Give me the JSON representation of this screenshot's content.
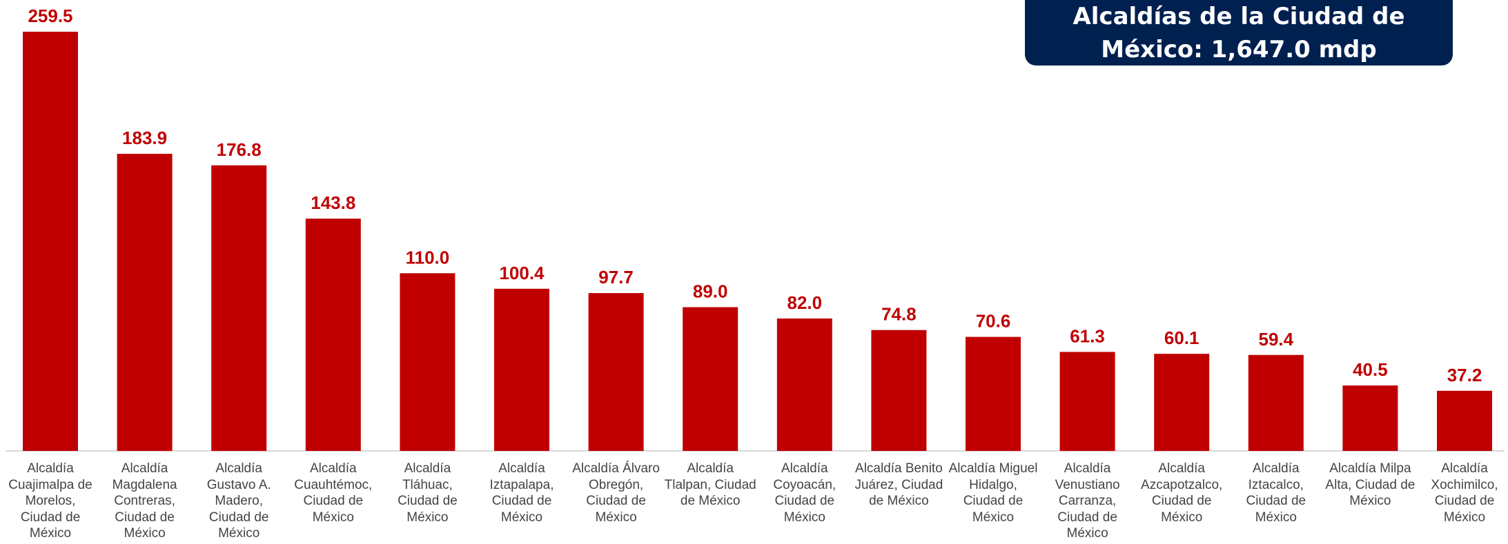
{
  "chart_data": {
    "type": "bar",
    "title": "Alcaldías de la Ciudad de México: 1,647.0 mdp",
    "categories": [
      "Alcaldía Cuajimalpa de Morelos, Ciudad de México",
      "Alcaldía Magdalena Contreras, Ciudad de México",
      "Alcaldía Gustavo A. Madero, Ciudad de México",
      "Alcaldía Cuauhtémoc, Ciudad de México",
      "Alcaldía Tláhuac, Ciudad de México",
      "Alcaldía Iztapalapa, Ciudad de México",
      "Alcaldía Álvaro Obregón, Ciudad de México",
      "Alcaldía Tlalpan, Ciudad de México",
      "Alcaldía Coyoacán, Ciudad de México",
      "Alcaldía Benito Juárez, Ciudad de México",
      "Alcaldía Miguel Hidalgo, Ciudad de México",
      "Alcaldía Venustiano Carranza, Ciudad de México",
      "Alcaldía Azcapotzalco, Ciudad de México",
      "Alcaldía Iztacalco, Ciudad de México",
      "Alcaldía Milpa Alta, Ciudad de México",
      "Alcaldía Xochimilco, Ciudad de México"
    ],
    "values": [
      259.5,
      183.9,
      176.8,
      143.8,
      110.0,
      100.4,
      97.7,
      89.0,
      82.0,
      74.8,
      70.6,
      61.3,
      60.1,
      59.4,
      40.5,
      37.2
    ],
    "value_labels": [
      "259.5",
      "183.9",
      "176.8",
      "143.8",
      "110.0",
      "100.4",
      "97.7",
      "89.0",
      "82.0",
      "74.8",
      "70.6",
      "61.3",
      "60.1",
      "59.4",
      "40.5",
      "37.2"
    ],
    "ylim": [
      0,
      259.5
    ],
    "grid": false,
    "legend": "none",
    "bar_color": "#c00000",
    "label_color": "#c00000",
    "title_bg_color": "#002050"
  }
}
